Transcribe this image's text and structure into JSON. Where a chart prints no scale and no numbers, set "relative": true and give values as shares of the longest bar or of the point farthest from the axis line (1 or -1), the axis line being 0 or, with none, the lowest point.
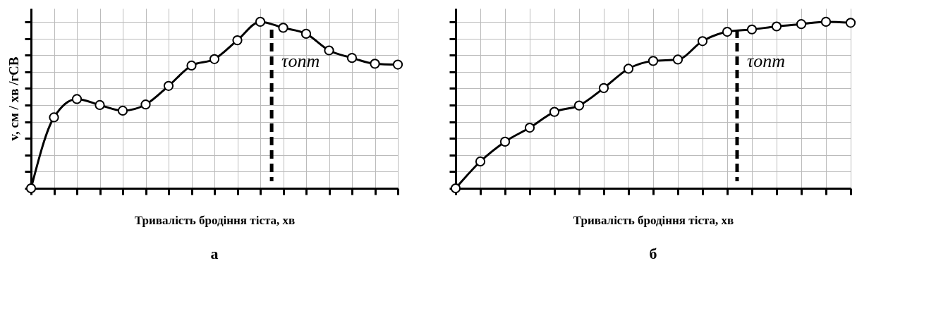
{
  "chart_data": [
    {
      "type": "line",
      "title": "а",
      "xlabel": "Тривалість бродіння тіста, хв",
      "ylabel": "v, см / хв /гСВ",
      "relative": true,
      "grid": true,
      "categories": [
        null,
        null,
        null,
        null,
        null,
        null,
        null,
        null,
        null,
        null,
        null,
        null,
        null,
        null,
        null,
        null,
        null
      ],
      "series": [
        {
          "color": "#000000",
          "marker": "circle",
          "line_style": "solid",
          "values": [
            0,
            0.426,
            0.536,
            0.5,
            0.466,
            0.503,
            0.615,
            0.737,
            0.776,
            0.889,
            1,
            0.964,
            0.928,
            0.828,
            0.783,
            0.748,
            0.743
          ]
        }
      ],
      "annotations": [
        "τопт"
      ]
    },
    {
      "type": "line",
      "title": "б",
      "xlabel": "Тривалість бродіння тіста, хв",
      "relative": true,
      "grid": true,
      "categories": [
        null,
        null,
        null,
        null,
        null,
        null,
        null,
        null,
        null,
        null,
        null,
        null,
        null,
        null,
        null,
        null,
        null
      ],
      "series": [
        {
          "color": "#000000",
          "marker": "circle",
          "line_style": "solid",
          "values": [
            0,
            0.161,
            0.28,
            0.364,
            0.459,
            0.497,
            0.602,
            0.718,
            0.765,
            0.773,
            0.884,
            0.94,
            0.954,
            0.972,
            0.986,
            1,
            0.994
          ]
        }
      ],
      "annotations": [
        "τопт"
      ]
    }
  ]
}
